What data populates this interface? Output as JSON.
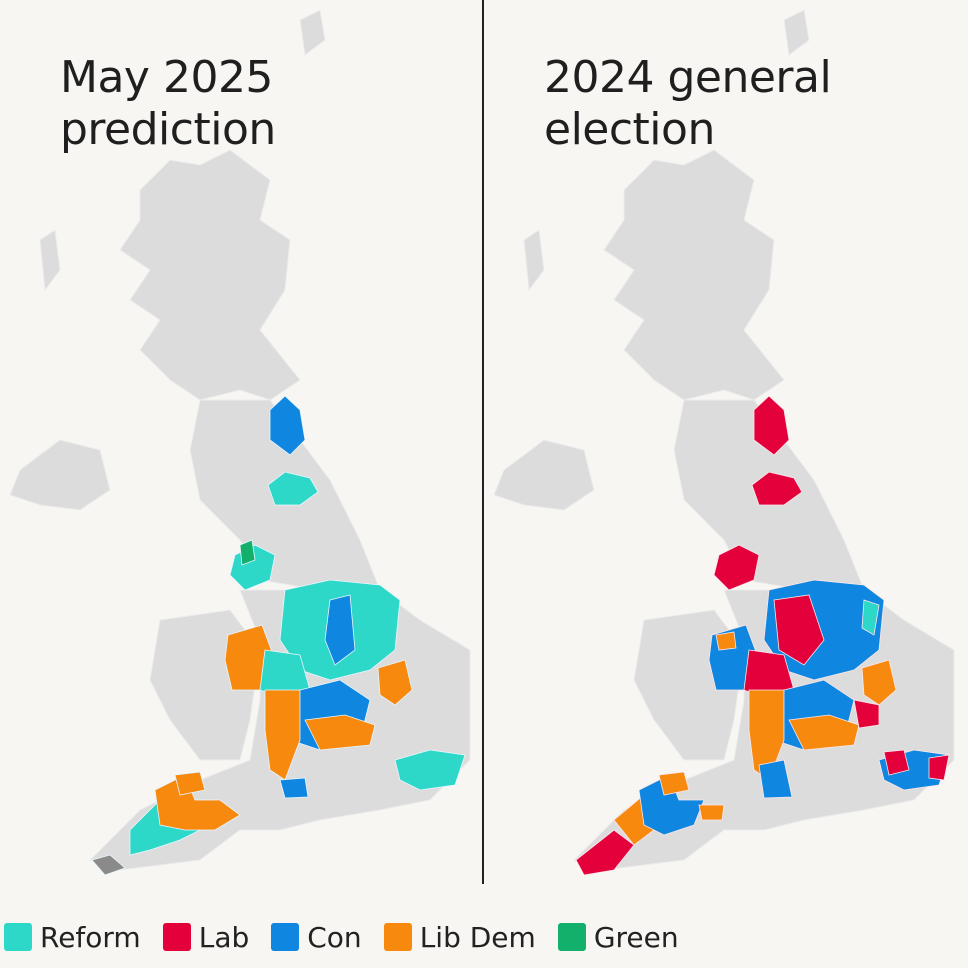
{
  "panels": [
    {
      "title_line1": "May 2025",
      "title_line2": "prediction"
    },
    {
      "title_line1": "2024 general",
      "title_line2": "election"
    }
  ],
  "legend": [
    {
      "label": "Reform",
      "color": "#2ed8c8"
    },
    {
      "label": "Lab",
      "color": "#e4003b"
    },
    {
      "label": "Con",
      "color": "#0f87e0"
    },
    {
      "label": "Lib Dem",
      "color": "#f7890f"
    },
    {
      "label": "Green",
      "color": "#12b06a"
    }
  ],
  "colors": {
    "background": "#f7f6f2",
    "land": "#dcdcdc",
    "other_party": "#8a8a8a"
  }
}
